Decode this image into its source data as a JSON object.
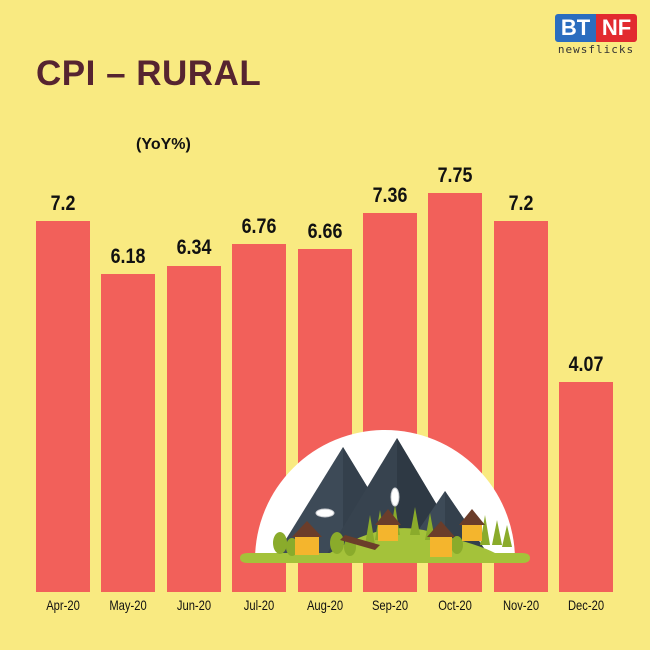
{
  "header": {
    "title": "CPI – RURAL",
    "unit_label": "(YoY%)",
    "logo": {
      "left": "BT",
      "right": "NF",
      "tagline": "newsflicks"
    }
  },
  "colors": {
    "background": "#f9ea81",
    "bar": "#f2605a",
    "title": "#562430"
  },
  "chart_data": {
    "type": "bar",
    "title": "CPI – RURAL",
    "subtitle": "(YoY%)",
    "xlabel": "",
    "ylabel": "YoY%",
    "categories": [
      "Apr-20",
      "May-20",
      "Jun-20",
      "Jul-20",
      "Aug-20",
      "Sep-20",
      "Oct-20",
      "Nov-20",
      "Dec-20"
    ],
    "values": [
      7.2,
      6.18,
      6.34,
      6.76,
      6.66,
      7.36,
      7.75,
      7.2,
      4.07
    ],
    "value_labels": [
      "7.2",
      "6.18",
      "6.34",
      "6.76",
      "6.66",
      "7.36",
      "7.75",
      "7.2",
      "4.07"
    ],
    "grid": false,
    "legend": null,
    "ylim": [
      0,
      8
    ]
  },
  "illustration": {
    "icon": "rural-village-mountains-icon"
  }
}
